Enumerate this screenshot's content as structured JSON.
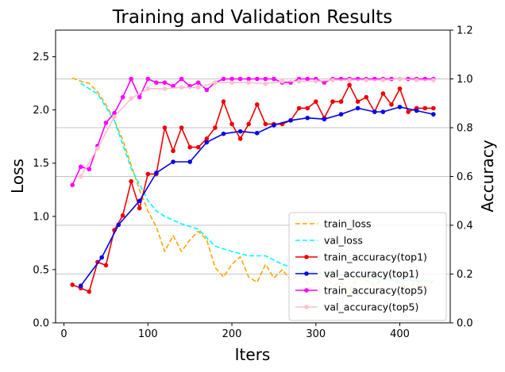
{
  "chart_data": {
    "type": "line",
    "title": "Training and Validation Results",
    "xlabel": "Iters",
    "ylabel_left": "Loss",
    "ylabel_right": "Accuracy",
    "xlim": [
      -10,
      460
    ],
    "ylim_left": [
      0,
      2.75
    ],
    "ylim_right": [
      0,
      1.2
    ],
    "x_ticks": [
      0,
      100,
      200,
      300,
      400
    ],
    "y_left_ticks": [
      0.0,
      0.5,
      1.0,
      1.5,
      2.0,
      2.5
    ],
    "y_right_ticks": [
      0.0,
      0.2,
      0.4,
      0.6,
      0.8,
      1.0,
      1.2
    ],
    "grid": "horizontal lines at right-axis ticks",
    "legend_position": "lower-right",
    "series": [
      {
        "name": "train_loss",
        "axis": "left",
        "color": "#ffa500",
        "style": "dashed",
        "marker": false,
        "x": [
          10,
          20,
          30,
          40,
          50,
          60,
          70,
          80,
          90,
          100,
          110,
          120,
          130,
          140,
          150,
          160,
          170,
          180,
          190,
          200,
          210,
          220,
          230,
          240,
          250,
          260,
          270,
          280,
          290,
          300,
          310,
          320,
          330,
          340,
          350,
          360,
          370,
          380,
          390,
          400,
          410,
          420,
          430,
          440
        ],
        "y": [
          2.3,
          2.27,
          2.25,
          2.17,
          2.05,
          1.9,
          1.72,
          1.48,
          1.25,
          1.05,
          0.9,
          0.67,
          0.82,
          0.67,
          0.78,
          0.86,
          0.78,
          0.52,
          0.43,
          0.55,
          0.62,
          0.43,
          0.38,
          0.55,
          0.42,
          0.5,
          0.4,
          0.45,
          0.38,
          0.42,
          0.45,
          0.35,
          0.38,
          0.3,
          0.42,
          0.4,
          0.35,
          0.42,
          0.4,
          0.38,
          0.3,
          0.4,
          0.32,
          0.4
        ]
      },
      {
        "name": "val_loss",
        "axis": "left",
        "color": "#00ffff",
        "style": "dashed",
        "marker": false,
        "x": [
          20,
          40,
          60,
          80,
          100,
          110,
          120,
          140,
          160,
          180,
          200,
          220,
          240,
          260,
          280,
          300,
          320,
          340,
          360,
          380,
          400,
          420,
          440
        ],
        "y": [
          2.25,
          2.15,
          1.9,
          1.45,
          1.15,
          1.05,
          1.0,
          0.93,
          0.88,
          0.72,
          0.67,
          0.63,
          0.63,
          0.55,
          0.5,
          0.48,
          0.46,
          0.44,
          0.42,
          0.41,
          0.4,
          0.4,
          0.39
        ]
      },
      {
        "name": "train_accuracy(top1)",
        "axis": "right",
        "color": "#ee0000",
        "style": "solid",
        "marker": true,
        "x": [
          10,
          20,
          30,
          40,
          50,
          60,
          70,
          80,
          90,
          100,
          110,
          120,
          130,
          140,
          150,
          160,
          170,
          180,
          190,
          200,
          210,
          220,
          230,
          240,
          250,
          260,
          270,
          280,
          290,
          300,
          310,
          320,
          330,
          340,
          350,
          360,
          370,
          380,
          390,
          400,
          410,
          420,
          430,
          440
        ],
        "y": [
          0.156,
          0.142,
          0.128,
          0.249,
          0.236,
          0.38,
          0.44,
          0.58,
          0.47,
          0.61,
          0.61,
          0.8,
          0.705,
          0.8,
          0.72,
          0.72,
          0.755,
          0.8,
          0.907,
          0.815,
          0.755,
          0.815,
          0.895,
          0.815,
          0.815,
          0.815,
          0.83,
          0.88,
          0.88,
          0.907,
          0.84,
          0.907,
          0.907,
          0.975,
          0.907,
          0.925,
          0.865,
          0.94,
          0.895,
          0.96,
          0.865,
          0.88,
          0.88,
          0.88
        ]
      },
      {
        "name": "val_accuracy(top1)",
        "axis": "right",
        "color": "#0000ee",
        "style": "solid",
        "marker": true,
        "x": [
          20,
          45,
          65,
          90,
          110,
          130,
          150,
          170,
          190,
          210,
          230,
          250,
          270,
          290,
          310,
          330,
          350,
          370,
          380,
          400,
          420,
          440
        ],
        "y": [
          0.152,
          0.268,
          0.402,
          0.5,
          0.615,
          0.66,
          0.66,
          0.74,
          0.775,
          0.785,
          0.778,
          0.81,
          0.83,
          0.84,
          0.835,
          0.855,
          0.88,
          0.865,
          0.865,
          0.885,
          0.87,
          0.855
        ]
      },
      {
        "name": "train_accuracy(top5)",
        "axis": "right",
        "color": "#ff00ff",
        "style": "solid",
        "marker": true,
        "x": [
          10,
          20,
          30,
          40,
          50,
          60,
          70,
          80,
          90,
          100,
          110,
          120,
          130,
          140,
          150,
          160,
          170,
          180,
          190,
          200,
          210,
          220,
          230,
          240,
          250,
          260,
          270,
          280,
          290,
          300,
          310,
          320,
          330,
          340,
          350,
          360,
          370,
          380,
          390,
          400,
          410,
          420,
          430,
          440
        ],
        "y": [
          0.565,
          0.64,
          0.63,
          0.725,
          0.82,
          0.86,
          0.925,
          1.0,
          0.925,
          1.0,
          0.985,
          0.985,
          0.97,
          1.0,
          0.97,
          0.985,
          0.955,
          0.985,
          1.0,
          1.0,
          1.0,
          1.0,
          1.0,
          1.0,
          1.0,
          0.985,
          0.985,
          1.0,
          1.0,
          1.0,
          0.985,
          1.0,
          1.0,
          1.0,
          1.0,
          1.0,
          1.0,
          1.0,
          1.0,
          1.0,
          1.0,
          1.0,
          1.0,
          1.0
        ]
      },
      {
        "name": "val_accuracy(top5)",
        "axis": "right",
        "color": "#ffc0cb",
        "style": "solid",
        "marker": true,
        "x": [
          20,
          40,
          60,
          80,
          100,
          120,
          140,
          160,
          180,
          200,
          220,
          240,
          260,
          280,
          300,
          320,
          340,
          360,
          380,
          400,
          420,
          440
        ],
        "y": [
          0.6,
          0.715,
          0.845,
          0.92,
          0.96,
          0.96,
          0.965,
          0.965,
          0.985,
          0.985,
          0.985,
          0.98,
          0.99,
          0.99,
          0.99,
          0.995,
          0.995,
          0.995,
          0.995,
          1.0,
          0.995,
          0.995
        ]
      }
    ]
  }
}
